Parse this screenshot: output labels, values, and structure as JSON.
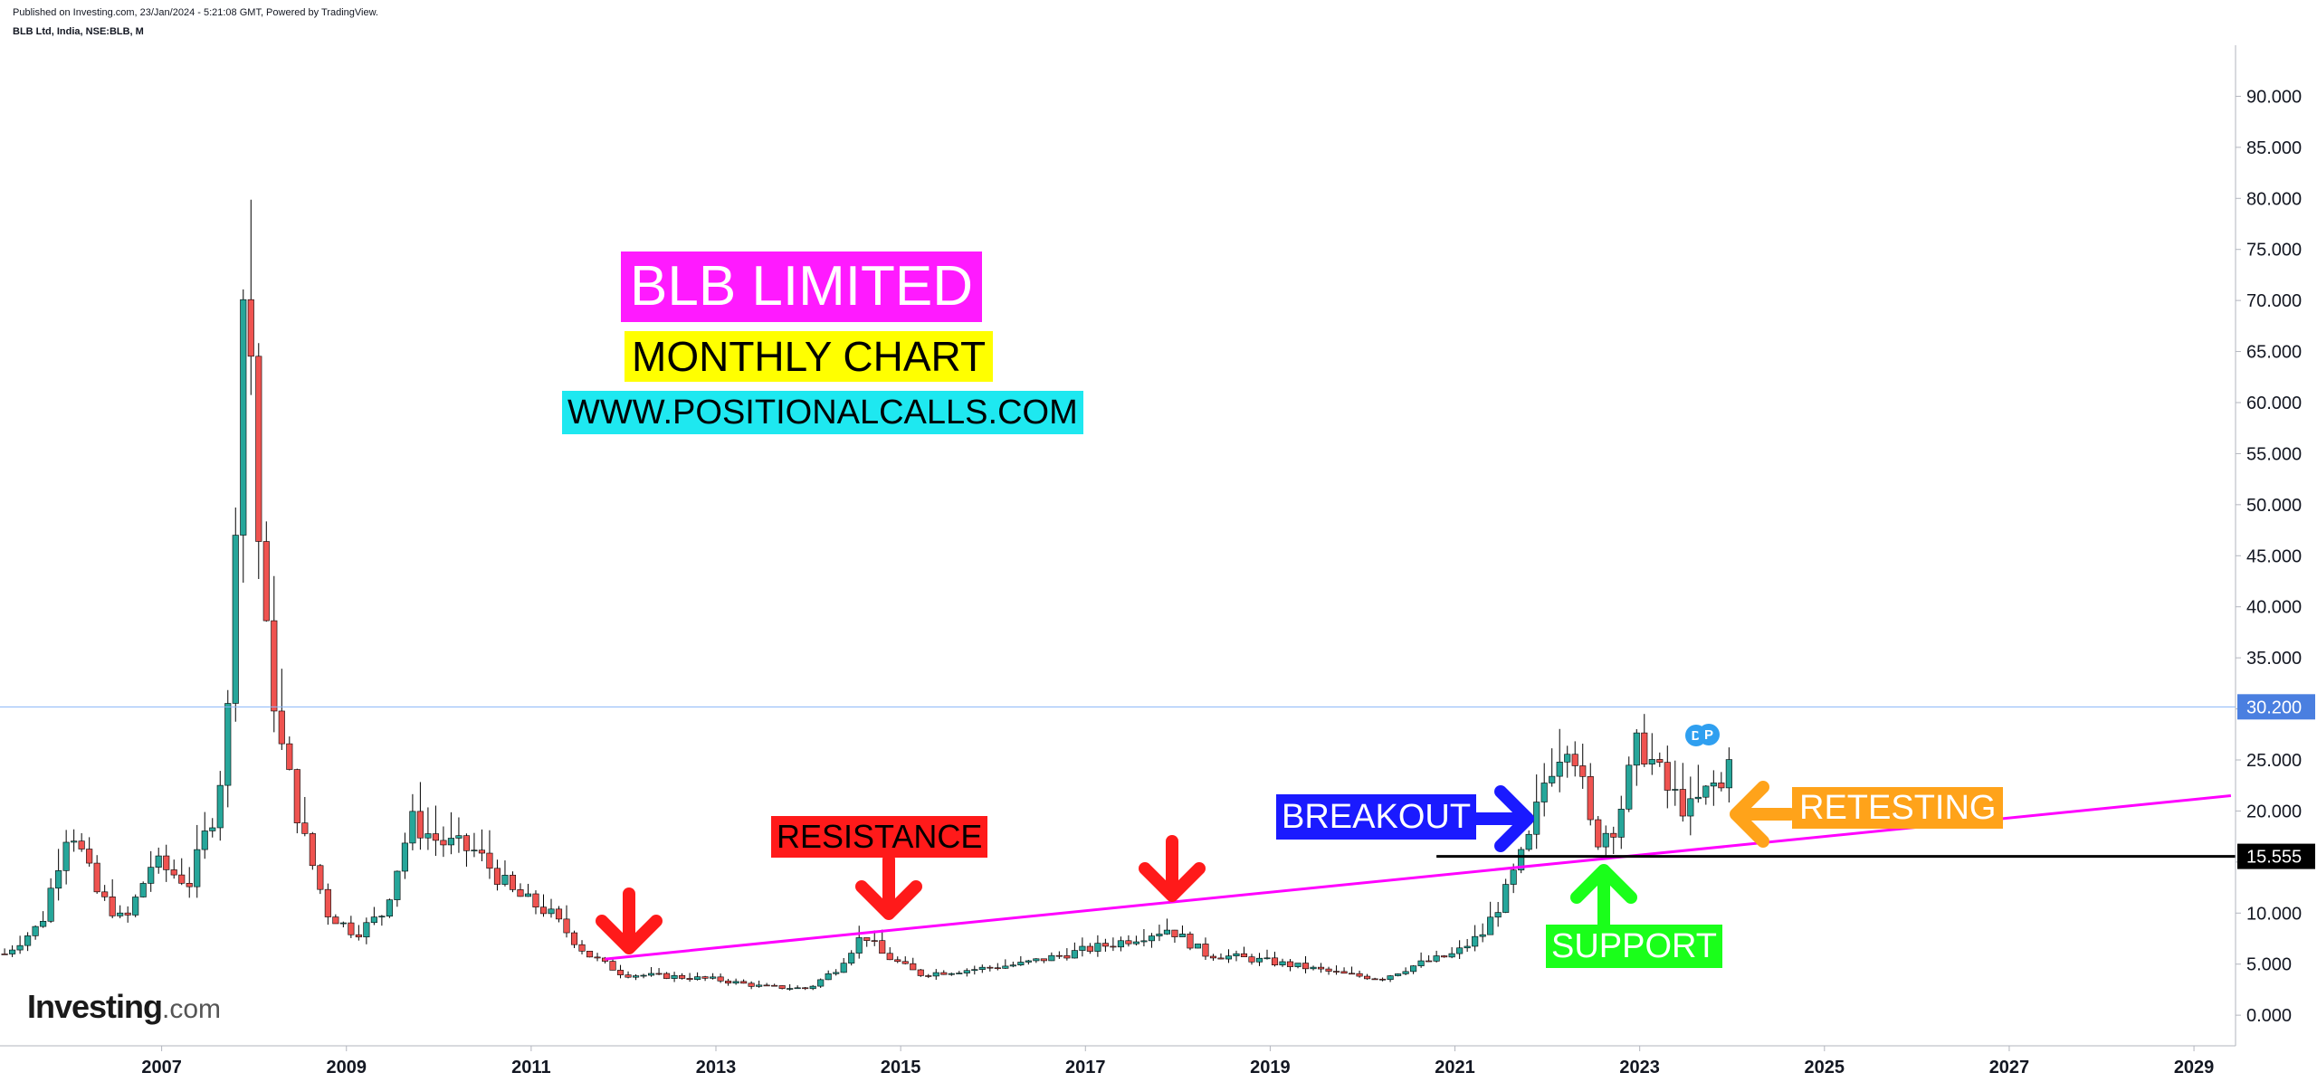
{
  "header": {
    "published": "Published on Investing.com, 23/Jan/2024 - 5:21:08 GMT, Powered by TradingView.",
    "symbol": "BLB Ltd, India, NSE:BLB, M"
  },
  "logo": {
    "brand": "Investing",
    "domain": ".com"
  },
  "annotations": {
    "title": "BLB LIMITED",
    "subtitle": "MONTHLY CHART",
    "website": "WWW.POSITIONALCALLS.COM",
    "resistance": "RESISTANCE",
    "breakout": "BREAKOUT",
    "support": "SUPPORT",
    "retesting": "RETESTING",
    "badge_d": "D",
    "badge_p": "P"
  },
  "colors": {
    "up": "#26a69a",
    "down": "#ef5350",
    "wick": "#000000",
    "trendline": "#ff00ff",
    "support_line": "#000000",
    "price_line": "#8ab4f8",
    "last_price_bg": "#4a7fe0",
    "arrow_red": "#ff1a1a",
    "arrow_blue": "#1a1aff",
    "arrow_green": "#1aff1a",
    "arrow_orange": "#ffa31a"
  },
  "chart_data": {
    "type": "candlestick",
    "y_axis": {
      "min": -3,
      "max": 95,
      "side": "right",
      "ticks": [
        0,
        5,
        10,
        15,
        20,
        25,
        30,
        35,
        40,
        45,
        50,
        55,
        60,
        65,
        70,
        75,
        80,
        85,
        90
      ],
      "tick_labels": [
        "0.000",
        "5.000",
        "10.000",
        "15.000",
        "20.000",
        "25.000",
        "30.000",
        "35.000",
        "40.000",
        "45.000",
        "50.000",
        "55.000",
        "60.000",
        "65.000",
        "70.000",
        "75.000",
        "80.000",
        "85.000",
        "90.000"
      ]
    },
    "x_axis": {
      "min": 2005.25,
      "max": 2029.45,
      "ticks": [
        2007,
        2009,
        2011,
        2013,
        2015,
        2017,
        2019,
        2021,
        2023,
        2025,
        2027,
        2029
      ],
      "tick_labels": [
        "2007",
        "2009",
        "2011",
        "2013",
        "2015",
        "2017",
        "2019",
        "2021",
        "2023",
        "2025",
        "2027",
        "2029"
      ]
    },
    "last_price": {
      "value": 30.2,
      "label": "30.200"
    },
    "support_level": {
      "value": 15.555,
      "label": "15.555",
      "from_x": 2020.8
    },
    "trendline": {
      "x1": 2011.8,
      "y1": 5.5,
      "x2": 2029.4,
      "y2": 21.5
    },
    "close_anchors": [
      [
        2005.3,
        6
      ],
      [
        2005.7,
        9
      ],
      [
        2006.0,
        19
      ],
      [
        2006.3,
        12
      ],
      [
        2006.6,
        9
      ],
      [
        2006.9,
        15
      ],
      [
        2007.3,
        13
      ],
      [
        2007.6,
        21
      ],
      [
        2007.75,
        32
      ],
      [
        2007.85,
        69
      ],
      [
        2007.93,
        73
      ],
      [
        2008.08,
        40
      ],
      [
        2008.3,
        26
      ],
      [
        2008.55,
        17
      ],
      [
        2008.8,
        10
      ],
      [
        2009.1,
        8
      ],
      [
        2009.4,
        10
      ],
      [
        2009.7,
        19
      ],
      [
        2010.0,
        17
      ],
      [
        2010.4,
        16
      ],
      [
        2010.8,
        12
      ],
      [
        2011.2,
        10
      ],
      [
        2011.6,
        6
      ],
      [
        2012.0,
        4
      ],
      [
        2012.5,
        3.8
      ],
      [
        2013.0,
        3.5
      ],
      [
        2013.5,
        2.8
      ],
      [
        2014.0,
        2.6
      ],
      [
        2014.3,
        4.5
      ],
      [
        2014.6,
        8
      ],
      [
        2014.8,
        6
      ],
      [
        2015.2,
        4
      ],
      [
        2015.8,
        4.5
      ],
      [
        2016.3,
        5
      ],
      [
        2016.8,
        6
      ],
      [
        2017.3,
        7
      ],
      [
        2017.9,
        8.5
      ],
      [
        2018.3,
        6
      ],
      [
        2018.8,
        5.5
      ],
      [
        2019.3,
        4.8
      ],
      [
        2019.8,
        4
      ],
      [
        2020.2,
        3.6
      ],
      [
        2020.6,
        5
      ],
      [
        2021.0,
        6
      ],
      [
        2021.3,
        8
      ],
      [
        2021.55,
        12
      ],
      [
        2021.8,
        17
      ],
      [
        2022.0,
        24
      ],
      [
        2022.25,
        28
      ],
      [
        2022.5,
        17
      ],
      [
        2022.75,
        19
      ],
      [
        2023.0,
        27
      ],
      [
        2023.3,
        22
      ],
      [
        2023.55,
        20
      ],
      [
        2023.85,
        23
      ],
      [
        2023.92,
        21
      ],
      [
        2024.0,
        30.2
      ]
    ],
    "notes": "Monthly OHLC bars 2005-2024; candle closes follow the anchor path above"
  }
}
